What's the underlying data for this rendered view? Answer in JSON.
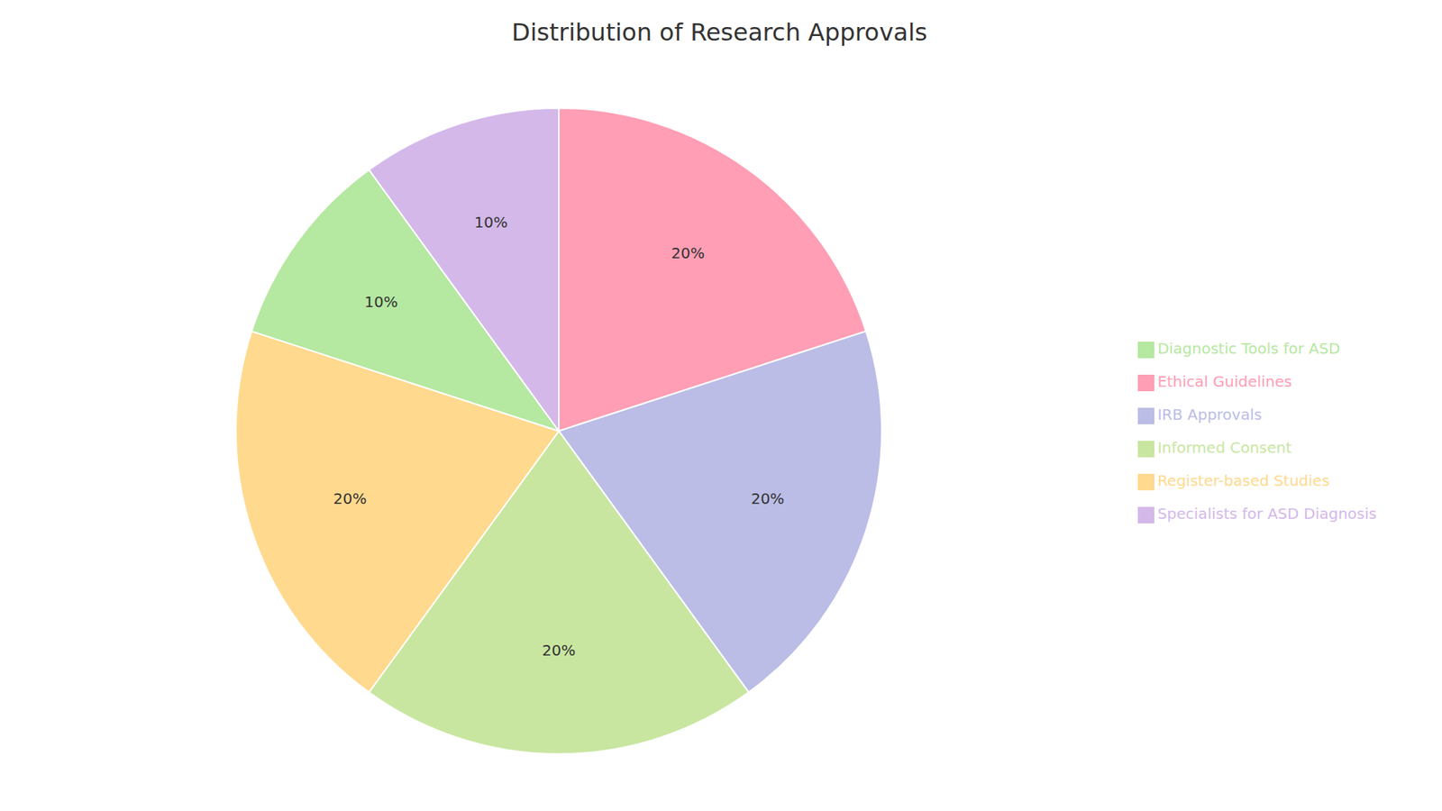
{
  "chart_data": {
    "type": "pie",
    "title": "Distribution of Research Approvals",
    "categories": [
      "Ethical Guidelines",
      "IRB Approvals",
      "Informed Consent",
      "Register-based Studies",
      "Diagnostic Tools for ASD",
      "Specialists for ASD Diagnosis"
    ],
    "values": [
      20,
      20,
      20,
      20,
      10,
      10
    ],
    "value_labels": [
      "20%",
      "20%",
      "20%",
      "20%",
      "10%",
      "10%"
    ],
    "data_labels": true,
    "colors": [
      "#FF9EB5",
      "#BBBDE6",
      "#C8E6A0",
      "#FFD98E",
      "#B5E8A0",
      "#D4B8EA"
    ],
    "legend": "right"
  }
}
